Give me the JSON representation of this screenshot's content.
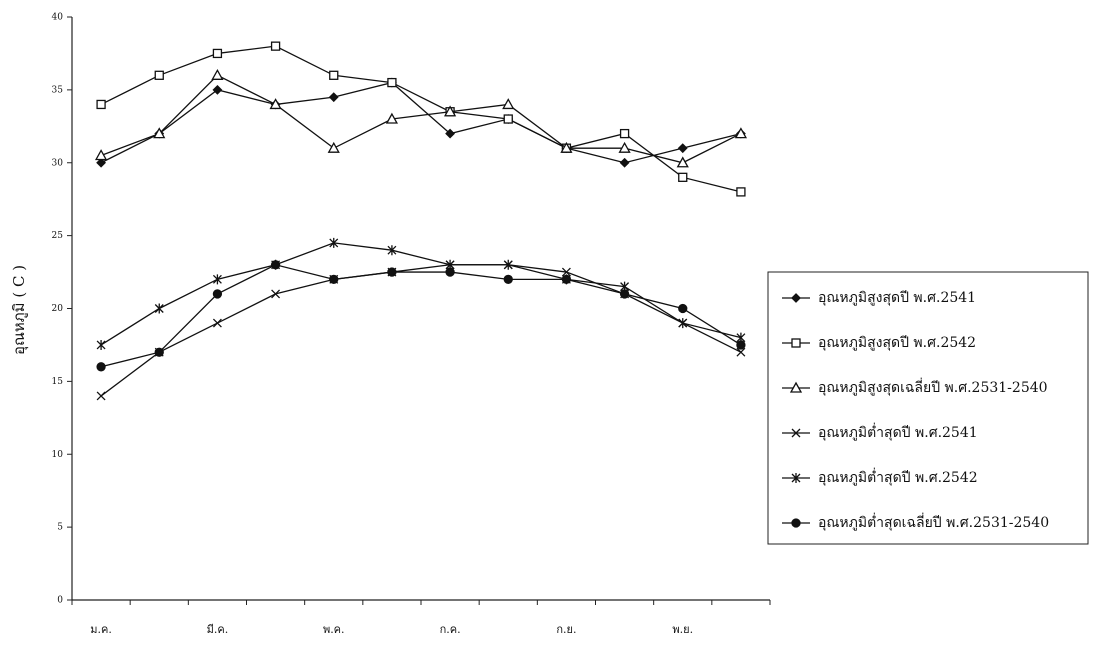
{
  "chart_data": {
    "type": "line",
    "y_label": "อุณหภูมิ ( C )",
    "categories": [
      "ม.ค.",
      null,
      "มี.ค.",
      null,
      "พ.ค.",
      null,
      "ก.ค.",
      null,
      "ก.ย.",
      null,
      "พ.ย.",
      null
    ],
    "ylim": [
      0,
      40
    ],
    "yticks": [
      0,
      5,
      10,
      15,
      20,
      25,
      30,
      35,
      40
    ],
    "series": [
      {
        "name": "อุณหภูมิสูงสุดปี พ.ศ.2541",
        "color": "#111111",
        "marker": "diamond",
        "values": [
          30,
          32,
          35,
          34,
          34.5,
          35.5,
          32,
          33,
          31,
          30,
          31,
          32
        ]
      },
      {
        "name": "อุณหภูมิสูงสุดปี พ.ศ.2542",
        "color": "#111111",
        "marker": "square",
        "values": [
          34,
          36,
          37.5,
          38,
          36,
          35.5,
          33.5,
          33,
          31,
          32,
          29,
          28
        ]
      },
      {
        "name": "อุณหภูมิสูงสุดเฉลี่ยปี พ.ศ.2531-2540",
        "color": "#111111",
        "marker": "triangle",
        "values": [
          30.5,
          32,
          36,
          34,
          31,
          33,
          33.5,
          34,
          31,
          31,
          30,
          32
        ]
      },
      {
        "name": "อุณหภูมิต่ำสุดปี พ.ศ.2541",
        "color": "#111111",
        "marker": "x",
        "values": [
          14,
          17,
          19,
          21,
          22,
          22.5,
          23,
          23,
          22.5,
          21,
          19,
          17
        ]
      },
      {
        "name": "อุณหภูมิต่ำสุดปี พ.ศ.2542",
        "color": "#111111",
        "marker": "star",
        "values": [
          17.5,
          20,
          22,
          23,
          24.5,
          24,
          23,
          23,
          22,
          21.5,
          19,
          18
        ]
      },
      {
        "name": "อุณหภูมิต่ำสุดเฉลี่ยปี พ.ศ.2531-2540",
        "color": "#111111",
        "marker": "circle",
        "values": [
          16,
          17,
          21,
          23,
          22,
          22.5,
          22.5,
          22,
          22,
          21,
          20,
          17.5
        ]
      }
    ]
  }
}
